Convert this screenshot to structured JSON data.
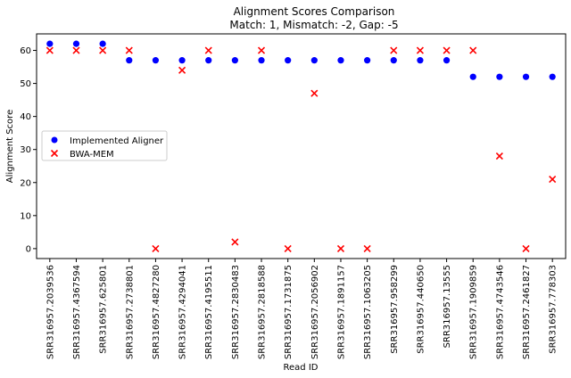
{
  "chart_data": {
    "type": "scatter",
    "title": "Alignment Scores Comparison",
    "subtitle": "Match: 1, Mismatch: -2, Gap: -5",
    "xlabel": "Read ID",
    "ylabel": "Alignment Score",
    "ylim": [
      -3,
      65
    ],
    "yticks": [
      0,
      10,
      20,
      30,
      40,
      50,
      60
    ],
    "grid": false,
    "legend_position": "center-left",
    "categories": [
      "SRR316957.2039536",
      "SRR316957.4367594",
      "SRR316957.625801",
      "SRR316957.2738801",
      "SRR316957.4827280",
      "SRR316957.4294041",
      "SRR316957.4195511",
      "SRR316957.2830483",
      "SRR316957.2818588",
      "SRR316957.1731875",
      "SRR316957.2056902",
      "SRR316957.1891157",
      "SRR316957.1063205",
      "SRR316957.958299",
      "SRR316957.440650",
      "SRR316957.13555",
      "SRR316957.1909859",
      "SRR316957.4743546",
      "SRR316957.2461827",
      "SRR316957.778303"
    ],
    "series": [
      {
        "name": "Implemented Aligner",
        "marker": "circle",
        "color": "#0000ff",
        "values": [
          62,
          62,
          62,
          57,
          57,
          57,
          57,
          57,
          57,
          57,
          57,
          57,
          57,
          57,
          57,
          57,
          52,
          52,
          52,
          52
        ]
      },
      {
        "name": "BWA-MEM",
        "marker": "x",
        "color": "#ff0000",
        "values": [
          60,
          60,
          60,
          60,
          0,
          54,
          60,
          2,
          60,
          0,
          47,
          0,
          0,
          60,
          60,
          60,
          60,
          28,
          0,
          21
        ]
      }
    ]
  }
}
